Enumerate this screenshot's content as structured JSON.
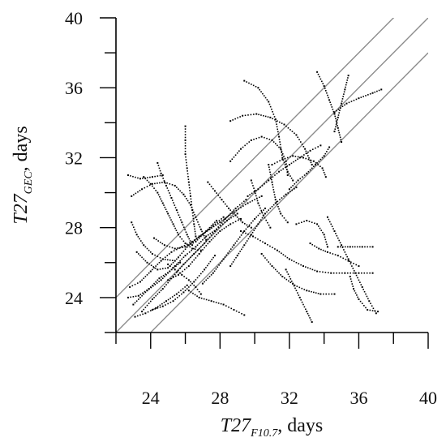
{
  "chart_data": {
    "type": "scatter",
    "title": "",
    "x_axis": {
      "label": {
        "main": "T27",
        "sub": "F10.7",
        "suffix": ", days"
      },
      "range": [
        22,
        40
      ],
      "ticks": [
        24,
        28,
        32,
        36,
        40
      ],
      "tick_labels": [
        "24",
        "28",
        "32",
        "36",
        "40"
      ],
      "minor_step": 2
    },
    "y_axis": {
      "label": {
        "main": "T27",
        "sub": "GEC",
        "suffix": ", days"
      },
      "range": [
        22,
        40
      ],
      "ticks": [
        24,
        28,
        32,
        36,
        40
      ],
      "tick_labels": [
        "24",
        "28",
        "32",
        "36",
        "40"
      ],
      "minor_step": 2
    },
    "reference_lines": [
      {
        "name": "y = x - 2",
        "offset": -2,
        "color": "#8c8c8c"
      },
      {
        "name": "y = x",
        "offset": 0,
        "color": "#8c8c8c"
      },
      {
        "name": "y = x + 2",
        "offset": 2,
        "color": "#8c8c8c"
      }
    ],
    "grid": false,
    "point_color": "#000000",
    "tracks": [
      {
        "points": [
          [
            23.0,
            23.6
          ],
          [
            23.8,
            24.4
          ],
          [
            24.6,
            25.0
          ],
          [
            25.4,
            25.8
          ],
          [
            26.0,
            26.4
          ],
          [
            26.6,
            26.9
          ],
          [
            27.2,
            27.5
          ],
          [
            27.8,
            27.9
          ],
          [
            28.4,
            28.4
          ],
          [
            29.0,
            28.8
          ]
        ]
      },
      {
        "points": [
          [
            23.2,
            26.6
          ],
          [
            23.8,
            26.0
          ],
          [
            24.4,
            25.6
          ],
          [
            25.0,
            25.7
          ],
          [
            25.6,
            26.3
          ],
          [
            26.2,
            27.0
          ],
          [
            26.8,
            27.5
          ],
          [
            27.4,
            27.9
          ],
          [
            28.0,
            28.3
          ],
          [
            28.8,
            28.9
          ],
          [
            29.6,
            29.4
          ],
          [
            30.4,
            29.8
          ]
        ]
      },
      {
        "points": [
          [
            22.8,
            24.6
          ],
          [
            23.4,
            24.9
          ],
          [
            24.0,
            25.5
          ],
          [
            24.6,
            26.1
          ],
          [
            25.2,
            26.6
          ],
          [
            25.8,
            26.9
          ],
          [
            26.4,
            27.2
          ],
          [
            27.0,
            27.6
          ],
          [
            27.6,
            28.1
          ],
          [
            28.2,
            28.6
          ]
        ]
      },
      {
        "points": [
          [
            23.5,
            23.2
          ],
          [
            24.1,
            23.9
          ],
          [
            24.7,
            24.5
          ],
          [
            25.3,
            25.2
          ],
          [
            25.9,
            25.9
          ],
          [
            26.5,
            26.5
          ],
          [
            27.1,
            27.1
          ],
          [
            27.7,
            27.8
          ],
          [
            28.3,
            28.5
          ],
          [
            28.9,
            29.1
          ],
          [
            29.5,
            29.6
          ]
        ]
      },
      {
        "points": [
          [
            23.6,
            30.9
          ],
          [
            24.0,
            30.5
          ],
          [
            24.4,
            30.0
          ],
          [
            24.7,
            29.4
          ],
          [
            25.0,
            28.8
          ],
          [
            25.3,
            28.2
          ],
          [
            25.6,
            27.6
          ],
          [
            26.0,
            27.1
          ],
          [
            26.4,
            26.8
          ],
          [
            26.9,
            26.7
          ]
        ]
      },
      {
        "points": [
          [
            22.9,
            29.8
          ],
          [
            23.5,
            30.2
          ],
          [
            24.1,
            30.5
          ],
          [
            24.8,
            30.6
          ],
          [
            25.4,
            30.4
          ],
          [
            25.9,
            29.9
          ],
          [
            26.3,
            29.3
          ],
          [
            26.6,
            28.6
          ],
          [
            26.9,
            27.9
          ],
          [
            27.2,
            27.3
          ]
        ]
      },
      {
        "points": [
          [
            24.4,
            31.7
          ],
          [
            24.6,
            31.1
          ],
          [
            24.9,
            30.4
          ],
          [
            25.2,
            29.7
          ],
          [
            25.5,
            29.0
          ],
          [
            25.8,
            28.3
          ],
          [
            26.1,
            27.6
          ],
          [
            26.4,
            27.0
          ]
        ]
      },
      {
        "points": [
          [
            26.0,
            33.8
          ],
          [
            26.0,
            33.0
          ],
          [
            26.0,
            32.2
          ],
          [
            26.1,
            31.4
          ],
          [
            26.2,
            30.6
          ],
          [
            26.3,
            29.8
          ],
          [
            26.4,
            29.0
          ],
          [
            26.5,
            28.2
          ],
          [
            26.6,
            27.5
          ]
        ]
      },
      {
        "points": [
          [
            27.3,
            30.6
          ],
          [
            27.7,
            30.1
          ],
          [
            28.1,
            29.6
          ],
          [
            28.5,
            29.1
          ],
          [
            28.9,
            28.7
          ],
          [
            29.3,
            28.3
          ],
          [
            29.8,
            28.0
          ]
        ]
      },
      {
        "points": [
          [
            28.6,
            31.8
          ],
          [
            29.2,
            32.5
          ],
          [
            29.8,
            33.0
          ],
          [
            30.4,
            33.2
          ],
          [
            31.0,
            33.0
          ],
          [
            31.5,
            32.5
          ],
          [
            31.8,
            31.8
          ],
          [
            31.9,
            31.0
          ]
        ]
      },
      {
        "points": [
          [
            29.4,
            36.4
          ],
          [
            30.2,
            36.0
          ],
          [
            30.8,
            35.2
          ],
          [
            31.2,
            34.2
          ],
          [
            31.4,
            33.2
          ],
          [
            31.6,
            32.0
          ],
          [
            31.9,
            31.2
          ],
          [
            32.2,
            30.7
          ]
        ]
      },
      {
        "points": [
          [
            28.6,
            34.1
          ],
          [
            29.3,
            34.4
          ],
          [
            30.1,
            34.5
          ],
          [
            30.9,
            34.3
          ],
          [
            31.7,
            33.9
          ],
          [
            32.4,
            33.3
          ],
          [
            32.9,
            32.5
          ],
          [
            33.3,
            31.6
          ]
        ]
      },
      {
        "points": [
          [
            29.6,
            29.8
          ],
          [
            30.2,
            30.2
          ],
          [
            30.8,
            30.7
          ],
          [
            31.4,
            31.2
          ],
          [
            32.0,
            31.6
          ],
          [
            32.6,
            32.0
          ],
          [
            33.2,
            32.4
          ],
          [
            33.8,
            32.7
          ]
        ]
      },
      {
        "points": [
          [
            31.0,
            31.6
          ],
          [
            31.6,
            31.9
          ],
          [
            32.2,
            32.1
          ],
          [
            32.8,
            32.0
          ],
          [
            33.4,
            31.8
          ],
          [
            33.9,
            31.4
          ],
          [
            34.1,
            30.9
          ]
        ]
      },
      {
        "points": [
          [
            33.6,
            36.9
          ],
          [
            34.0,
            36.1
          ],
          [
            34.3,
            35.3
          ],
          [
            34.6,
            34.5
          ],
          [
            34.8,
            33.7
          ],
          [
            35.0,
            32.9
          ]
        ]
      },
      {
        "points": [
          [
            35.4,
            36.7
          ],
          [
            35.2,
            35.9
          ],
          [
            35.0,
            35.1
          ],
          [
            34.8,
            34.3
          ],
          [
            34.6,
            33.5
          ]
        ]
      },
      {
        "points": [
          [
            34.6,
            34.6
          ],
          [
            35.3,
            35.1
          ],
          [
            36.0,
            35.4
          ],
          [
            36.8,
            35.7
          ],
          [
            37.3,
            35.9
          ]
        ]
      },
      {
        "points": [
          [
            30.4,
            26.5
          ],
          [
            31.0,
            25.8
          ],
          [
            31.6,
            25.2
          ],
          [
            32.3,
            24.7
          ],
          [
            33.0,
            24.4
          ],
          [
            33.8,
            24.2
          ],
          [
            34.6,
            24.2
          ]
        ]
      },
      {
        "points": [
          [
            29.2,
            27.8
          ],
          [
            29.9,
            27.5
          ],
          [
            30.6,
            27.1
          ],
          [
            31.3,
            26.7
          ],
          [
            32.0,
            26.2
          ],
          [
            32.8,
            25.8
          ],
          [
            33.6,
            25.5
          ],
          [
            34.4,
            25.4
          ],
          [
            35.2,
            25.4
          ],
          [
            36.0,
            25.4
          ],
          [
            36.8,
            25.4
          ]
        ]
      },
      {
        "points": [
          [
            31.8,
            25.6
          ],
          [
            32.2,
            24.8
          ],
          [
            32.6,
            24.0
          ],
          [
            33.0,
            23.2
          ],
          [
            33.3,
            22.6
          ]
        ]
      },
      {
        "points": [
          [
            33.2,
            27.1
          ],
          [
            33.7,
            26.8
          ],
          [
            34.2,
            26.6
          ],
          [
            34.8,
            26.4
          ],
          [
            35.4,
            26.1
          ],
          [
            36.0,
            25.8
          ]
        ]
      },
      {
        "points": [
          [
            34.2,
            28.6
          ],
          [
            34.6,
            27.8
          ],
          [
            35.0,
            27.0
          ],
          [
            35.4,
            26.2
          ],
          [
            35.8,
            25.4
          ],
          [
            36.2,
            24.6
          ],
          [
            36.6,
            23.8
          ],
          [
            37.0,
            23.1
          ]
        ]
      },
      {
        "points": [
          [
            34.8,
            26.9
          ],
          [
            35.5,
            26.9
          ],
          [
            36.2,
            26.9
          ],
          [
            36.8,
            26.9
          ]
        ]
      },
      {
        "points": [
          [
            35.5,
            25.2
          ],
          [
            35.7,
            24.5
          ],
          [
            36.0,
            23.9
          ],
          [
            36.5,
            23.3
          ],
          [
            37.1,
            23.2
          ]
        ]
      },
      {
        "points": [
          [
            32.4,
            28.2
          ],
          [
            33.0,
            28.4
          ],
          [
            33.6,
            28.2
          ],
          [
            34.0,
            27.6
          ],
          [
            34.2,
            26.9
          ]
        ]
      },
      {
        "points": [
          [
            26.2,
            24.4
          ],
          [
            26.8,
            24.0
          ],
          [
            27.5,
            23.8
          ],
          [
            28.2,
            23.6
          ],
          [
            28.8,
            23.3
          ],
          [
            29.4,
            23.0
          ]
        ]
      },
      {
        "points": [
          [
            22.9,
            28.3
          ],
          [
            23.2,
            27.6
          ],
          [
            23.6,
            27.0
          ],
          [
            24.1,
            26.5
          ],
          [
            24.7,
            26.2
          ],
          [
            25.4,
            26.1
          ]
        ]
      },
      {
        "points": [
          [
            30.8,
            31.6
          ],
          [
            31.0,
            30.6
          ],
          [
            31.2,
            29.6
          ],
          [
            31.5,
            28.8
          ],
          [
            31.9,
            28.3
          ]
        ]
      },
      {
        "points": [
          [
            22.7,
            24.0
          ],
          [
            23.3,
            24.1
          ],
          [
            23.9,
            24.5
          ],
          [
            24.5,
            25.1
          ],
          [
            25.1,
            25.5
          ],
          [
            25.7,
            26.0
          ]
        ]
      },
      {
        "points": [
          [
            24.1,
            23.3
          ],
          [
            24.7,
            23.5
          ],
          [
            25.3,
            23.8
          ],
          [
            25.9,
            24.3
          ],
          [
            26.5,
            24.9
          ],
          [
            27.1,
            25.6
          ],
          [
            27.7,
            26.4
          ]
        ]
      },
      {
        "points": [
          [
            23.1,
            22.9
          ],
          [
            23.7,
            23.1
          ],
          [
            24.3,
            23.4
          ],
          [
            24.9,
            23.8
          ],
          [
            25.5,
            24.2
          ],
          [
            26.1,
            24.7
          ]
        ]
      },
      {
        "points": [
          [
            25.0,
            25.0
          ],
          [
            25.6,
            25.3
          ],
          [
            26.2,
            25.8
          ],
          [
            26.8,
            26.5
          ],
          [
            27.4,
            27.2
          ],
          [
            28.0,
            27.8
          ],
          [
            28.6,
            28.2
          ],
          [
            29.2,
            28.5
          ]
        ]
      },
      {
        "points": [
          [
            24.2,
            27.4
          ],
          [
            24.8,
            27.0
          ],
          [
            25.4,
            26.8
          ],
          [
            26.0,
            26.9
          ],
          [
            26.6,
            27.2
          ],
          [
            27.2,
            27.8
          ],
          [
            27.8,
            28.4
          ]
        ]
      },
      {
        "points": [
          [
            27.0,
            24.8
          ],
          [
            27.6,
            25.4
          ],
          [
            28.2,
            26.2
          ],
          [
            28.8,
            27.0
          ],
          [
            29.4,
            27.8
          ],
          [
            30.0,
            28.5
          ],
          [
            30.6,
            29.1
          ]
        ]
      },
      {
        "points": [
          [
            28.6,
            25.8
          ],
          [
            29.0,
            26.4
          ],
          [
            29.4,
            27.0
          ],
          [
            29.8,
            27.6
          ],
          [
            30.2,
            28.2
          ],
          [
            30.6,
            28.8
          ],
          [
            31.2,
            29.4
          ],
          [
            31.8,
            29.9
          ],
          [
            32.4,
            30.3
          ]
        ]
      },
      {
        "points": [
          [
            22.7,
            31.0
          ],
          [
            23.4,
            30.8
          ],
          [
            24.1,
            30.9
          ],
          [
            24.7,
            31.0
          ]
        ]
      },
      {
        "points": [
          [
            26.9,
            24.2
          ],
          [
            26.6,
            24.6
          ],
          [
            26.2,
            25.0
          ],
          [
            25.8,
            25.3
          ],
          [
            25.4,
            25.6
          ],
          [
            25.0,
            25.9
          ]
        ]
      },
      {
        "points": [
          [
            32.0,
            30.2
          ],
          [
            32.5,
            30.7
          ],
          [
            33.0,
            31.1
          ],
          [
            33.5,
            31.6
          ],
          [
            34.0,
            32.1
          ],
          [
            34.3,
            32.6
          ]
        ]
      },
      {
        "points": [
          [
            30.9,
            28.0
          ],
          [
            30.5,
            28.7
          ],
          [
            30.2,
            29.4
          ],
          [
            30.0,
            30.1
          ],
          [
            29.8,
            30.7
          ]
        ]
      }
    ]
  }
}
